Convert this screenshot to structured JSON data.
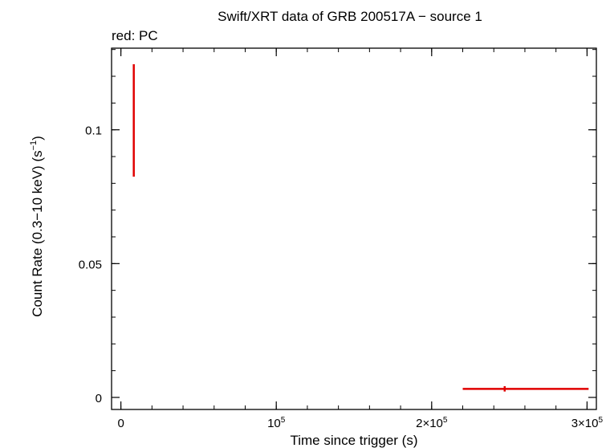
{
  "chart_data": {
    "type": "scatter",
    "title": "Swift/XRT data of GRB 200517A − source 1",
    "subtitle": "red: PC",
    "xlabel": "Time since trigger (s)",
    "ylabel_main": "Count Rate (0.3−10 keV) (s",
    "ylabel_sup": "−1",
    "ylabel_end": ")",
    "xlim": [
      -6000,
      306000
    ],
    "ylim": [
      -0.0045,
      0.1305
    ],
    "x_ticks": [
      {
        "value": 0,
        "label": "0",
        "sup": ""
      },
      {
        "value": 100000,
        "label": "10",
        "sup": "5"
      },
      {
        "value": 200000,
        "label": "2×10",
        "sup": "5"
      },
      {
        "value": 300000,
        "label": "3×10",
        "sup": "5"
      }
    ],
    "y_ticks": [
      {
        "value": 0,
        "label": "0"
      },
      {
        "value": 0.05,
        "label": "0.05"
      },
      {
        "value": 0.1,
        "label": "0.1"
      }
    ],
    "x_minor_step": 20000,
    "y_minor_step": 0.01,
    "grid": false,
    "series": [
      {
        "color": "#e00000",
        "points": [
          {
            "x": 8300,
            "y": 0.1035,
            "x_lo": 8000,
            "x_hi": 8700,
            "y_lo": 0.0825,
            "y_hi": 0.1245
          },
          {
            "x": 247000,
            "y": 0.0032,
            "x_lo": 220000,
            "x_hi": 301000,
            "y_lo": 0.0022,
            "y_hi": 0.0042
          }
        ]
      }
    ]
  }
}
